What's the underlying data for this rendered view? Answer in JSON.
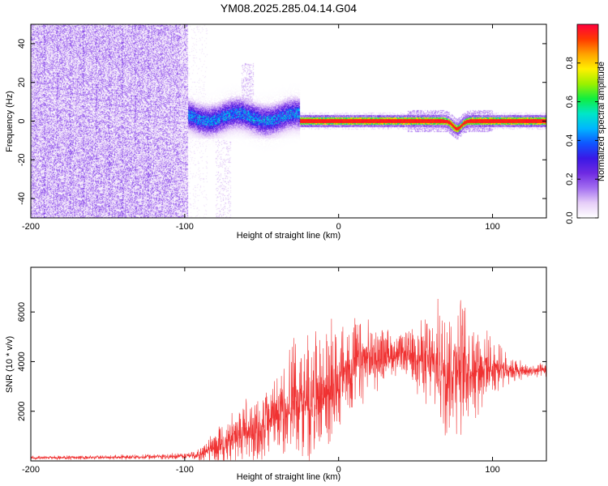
{
  "title": "YM08.2025.285.04.14.G04",
  "colors": {
    "snr_line": "#f03232",
    "spectral_ramp": [
      "#ffffff",
      "#e6cef8",
      "#a36ff0",
      "#6f2ae2",
      "#3a18e6",
      "#0f55ff",
      "#00b6ff",
      "#00e6c8",
      "#10ee40",
      "#9cf000",
      "#fff000",
      "#ffa200",
      "#ff3a00",
      "#ff003c"
    ]
  },
  "chart_data": [
    {
      "type": "heatmap",
      "name": "spectrogram",
      "xlabel": "Height of straight line (km)",
      "ylabel": "Frequency (Hz)",
      "xlim": [
        -200,
        135
      ],
      "ylim": [
        -50,
        50
      ],
      "xticks": [
        -200,
        -100,
        0,
        100
      ],
      "yticks": [
        -40,
        -20,
        0,
        20,
        40
      ],
      "x_tick_labels": [
        "-200",
        "-100",
        "0",
        "100"
      ],
      "y_tick_labels": [
        "-40",
        "-20",
        "0",
        "20",
        "40"
      ],
      "ridge_frequency_hz": 0,
      "description_regions": [
        {
          "x_range": [
            -200,
            -98
          ],
          "level": "noise"
        },
        {
          "x_range": [
            -98,
            -25
          ],
          "center_hz": 2,
          "spread_hz": 5
        },
        {
          "x_range": [
            -25,
            135
          ],
          "center_hz": 0,
          "spread_hz": 1.5,
          "dip": {
            "x": 77,
            "min_hz": -4
          }
        }
      ],
      "colorbar": {
        "label": "Normalized spectral amplitude",
        "range": [
          0,
          1
        ],
        "ticks": [
          0.0,
          0.2,
          0.4,
          0.6,
          0.8
        ],
        "tick_labels": [
          "0.0",
          "0.2",
          "0.4",
          "0.6",
          "0.8"
        ]
      }
    },
    {
      "type": "line",
      "name": "snr",
      "xlabel": "Height of straight line (km)",
      "ylabel": "SNR (10 * v/v)",
      "xlim": [
        -200,
        135
      ],
      "ylim": [
        0,
        7800
      ],
      "xticks": [
        -200,
        -100,
        0,
        100
      ],
      "yticks": [
        2000,
        4000,
        6000
      ],
      "x_tick_labels": [
        "-200",
        "-100",
        "0",
        "100"
      ],
      "y_tick_labels": [
        "2000",
        "4000",
        "6000"
      ],
      "envelope": {
        "x": [
          -200,
          -150,
          -110,
          -95,
          -85,
          -70,
          -60,
          -50,
          -40,
          -30,
          -20,
          -10,
          0,
          10,
          20,
          30,
          40,
          50,
          60,
          70,
          78,
          85,
          95,
          110,
          120,
          135
        ],
        "mean": [
          120,
          140,
          180,
          220,
          380,
          800,
          1200,
          1200,
          1900,
          2500,
          2500,
          2700,
          3300,
          3800,
          4100,
          4300,
          4300,
          4200,
          3900,
          3800,
          3900,
          3800,
          3800,
          3700,
          3600,
          3650
        ],
        "amp": [
          80,
          90,
          110,
          150,
          450,
          1100,
          1400,
          1500,
          1600,
          2200,
          2600,
          2500,
          2300,
          1900,
          1500,
          1100,
          800,
          1200,
          2200,
          2700,
          2800,
          2200,
          1500,
          600,
          350,
          250
        ]
      }
    }
  ]
}
